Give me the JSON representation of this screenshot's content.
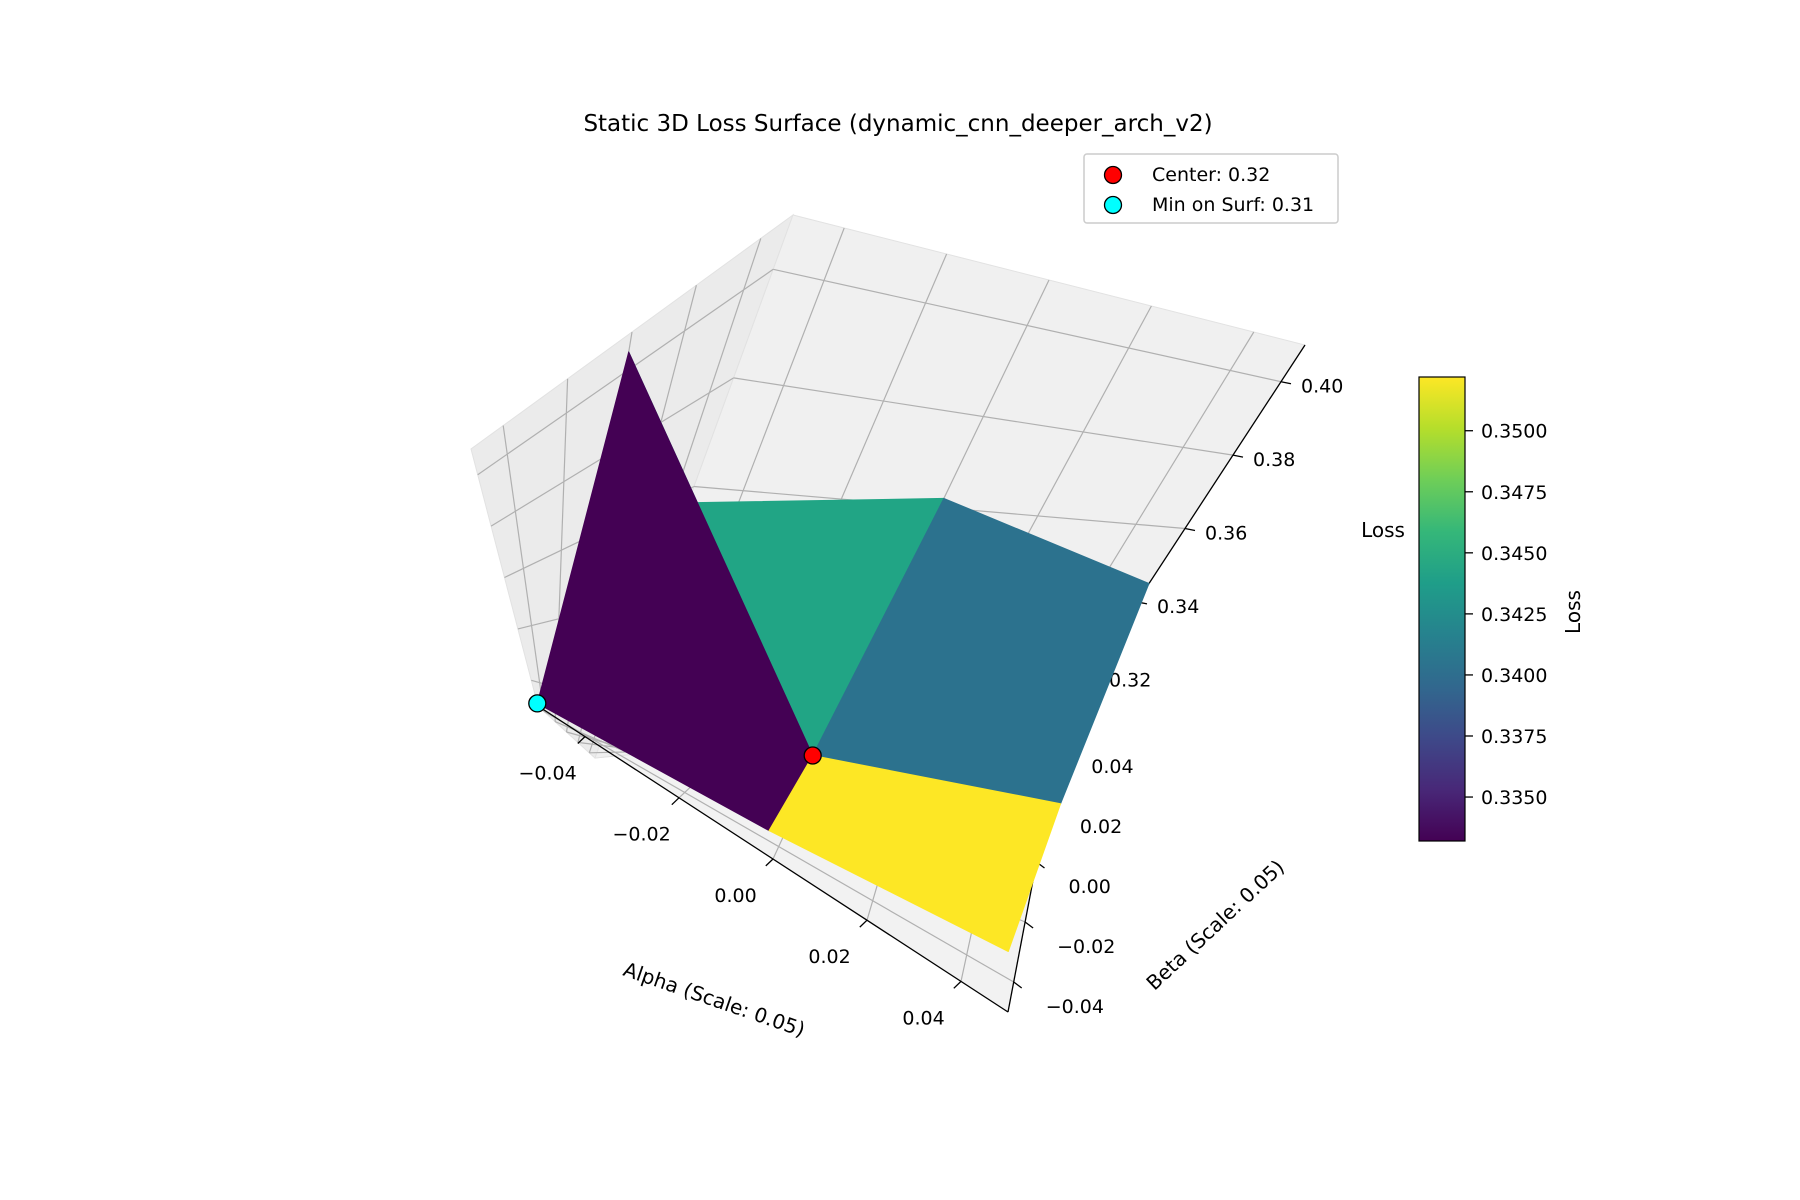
{
  "chart_data": {
    "type": "surface3d",
    "title": "Static 3D Loss Surface (dynamic_cnn_deeper_arch_v2)",
    "xlabel": "Alpha (Scale: 0.05)",
    "ylabel": "Beta (Scale: 0.05)",
    "zlabel": "Loss",
    "xlim": [
      -0.05,
      0.05
    ],
    "ylim": [
      -0.05,
      0.05
    ],
    "zlim": [
      0.31,
      0.41
    ],
    "x_ticks": [
      "−0.04",
      "−0.02",
      "0.00",
      "0.02",
      "0.04"
    ],
    "y_ticks": [
      "−0.04",
      "−0.02",
      "0.00",
      "0.02",
      "0.04"
    ],
    "z_ticks": [
      "0.32",
      "0.34",
      "0.36",
      "0.38",
      "0.40"
    ],
    "x_tick_values": [
      -0.04,
      -0.02,
      0.0,
      0.02,
      0.04
    ],
    "y_tick_values": [
      -0.04,
      -0.02,
      0.0,
      0.02,
      0.04
    ],
    "z_tick_values": [
      0.32,
      0.34,
      0.36,
      0.38,
      0.4
    ],
    "grid": true,
    "colormap": "viridis",
    "surface": {
      "alpha": [
        -0.05,
        0.0,
        0.05
      ],
      "beta": [
        -0.05,
        0.0,
        0.05
      ],
      "loss": [
        [
          0.311,
          0.322,
          0.338
        ],
        [
          0.405,
          0.322,
          0.33
        ],
        [
          0.357,
          0.362,
          0.345
        ]
      ],
      "face_colors": [
        {
          "face": "alpha -0.05..0 / beta -0.05..0",
          "value": 0.3335,
          "color": "#440154"
        },
        {
          "face": "alpha 0..0.05 / beta -0.05..0",
          "value": 0.3515,
          "color": "#fde725"
        },
        {
          "face": "alpha -0.05..0 / beta 0..0.05",
          "value": 0.3435,
          "color": "#21a585"
        },
        {
          "face": "alpha 0..0.05 / beta 0..0.05",
          "value": 0.3395,
          "color": "#2c728e"
        }
      ]
    },
    "markers": [
      {
        "label": "Center: 0.32",
        "alpha": 0.0,
        "beta": 0.0,
        "loss": 0.322,
        "color": "#ff0000"
      },
      {
        "label": "Min on Surf: 0.31",
        "alpha": -0.05,
        "beta": -0.05,
        "loss": 0.311,
        "color": "#00ffff"
      }
    ],
    "legend_position": "top-right",
    "colorbar": {
      "label": "Loss",
      "range": [
        0.3332,
        0.3522
      ],
      "ticks": [
        "0.3350",
        "0.3375",
        "0.3400",
        "0.3425",
        "0.3450",
        "0.3475",
        "0.3500"
      ],
      "tick_values": [
        0.335,
        0.3375,
        0.34,
        0.3425,
        0.345,
        0.3475,
        0.35
      ]
    }
  }
}
